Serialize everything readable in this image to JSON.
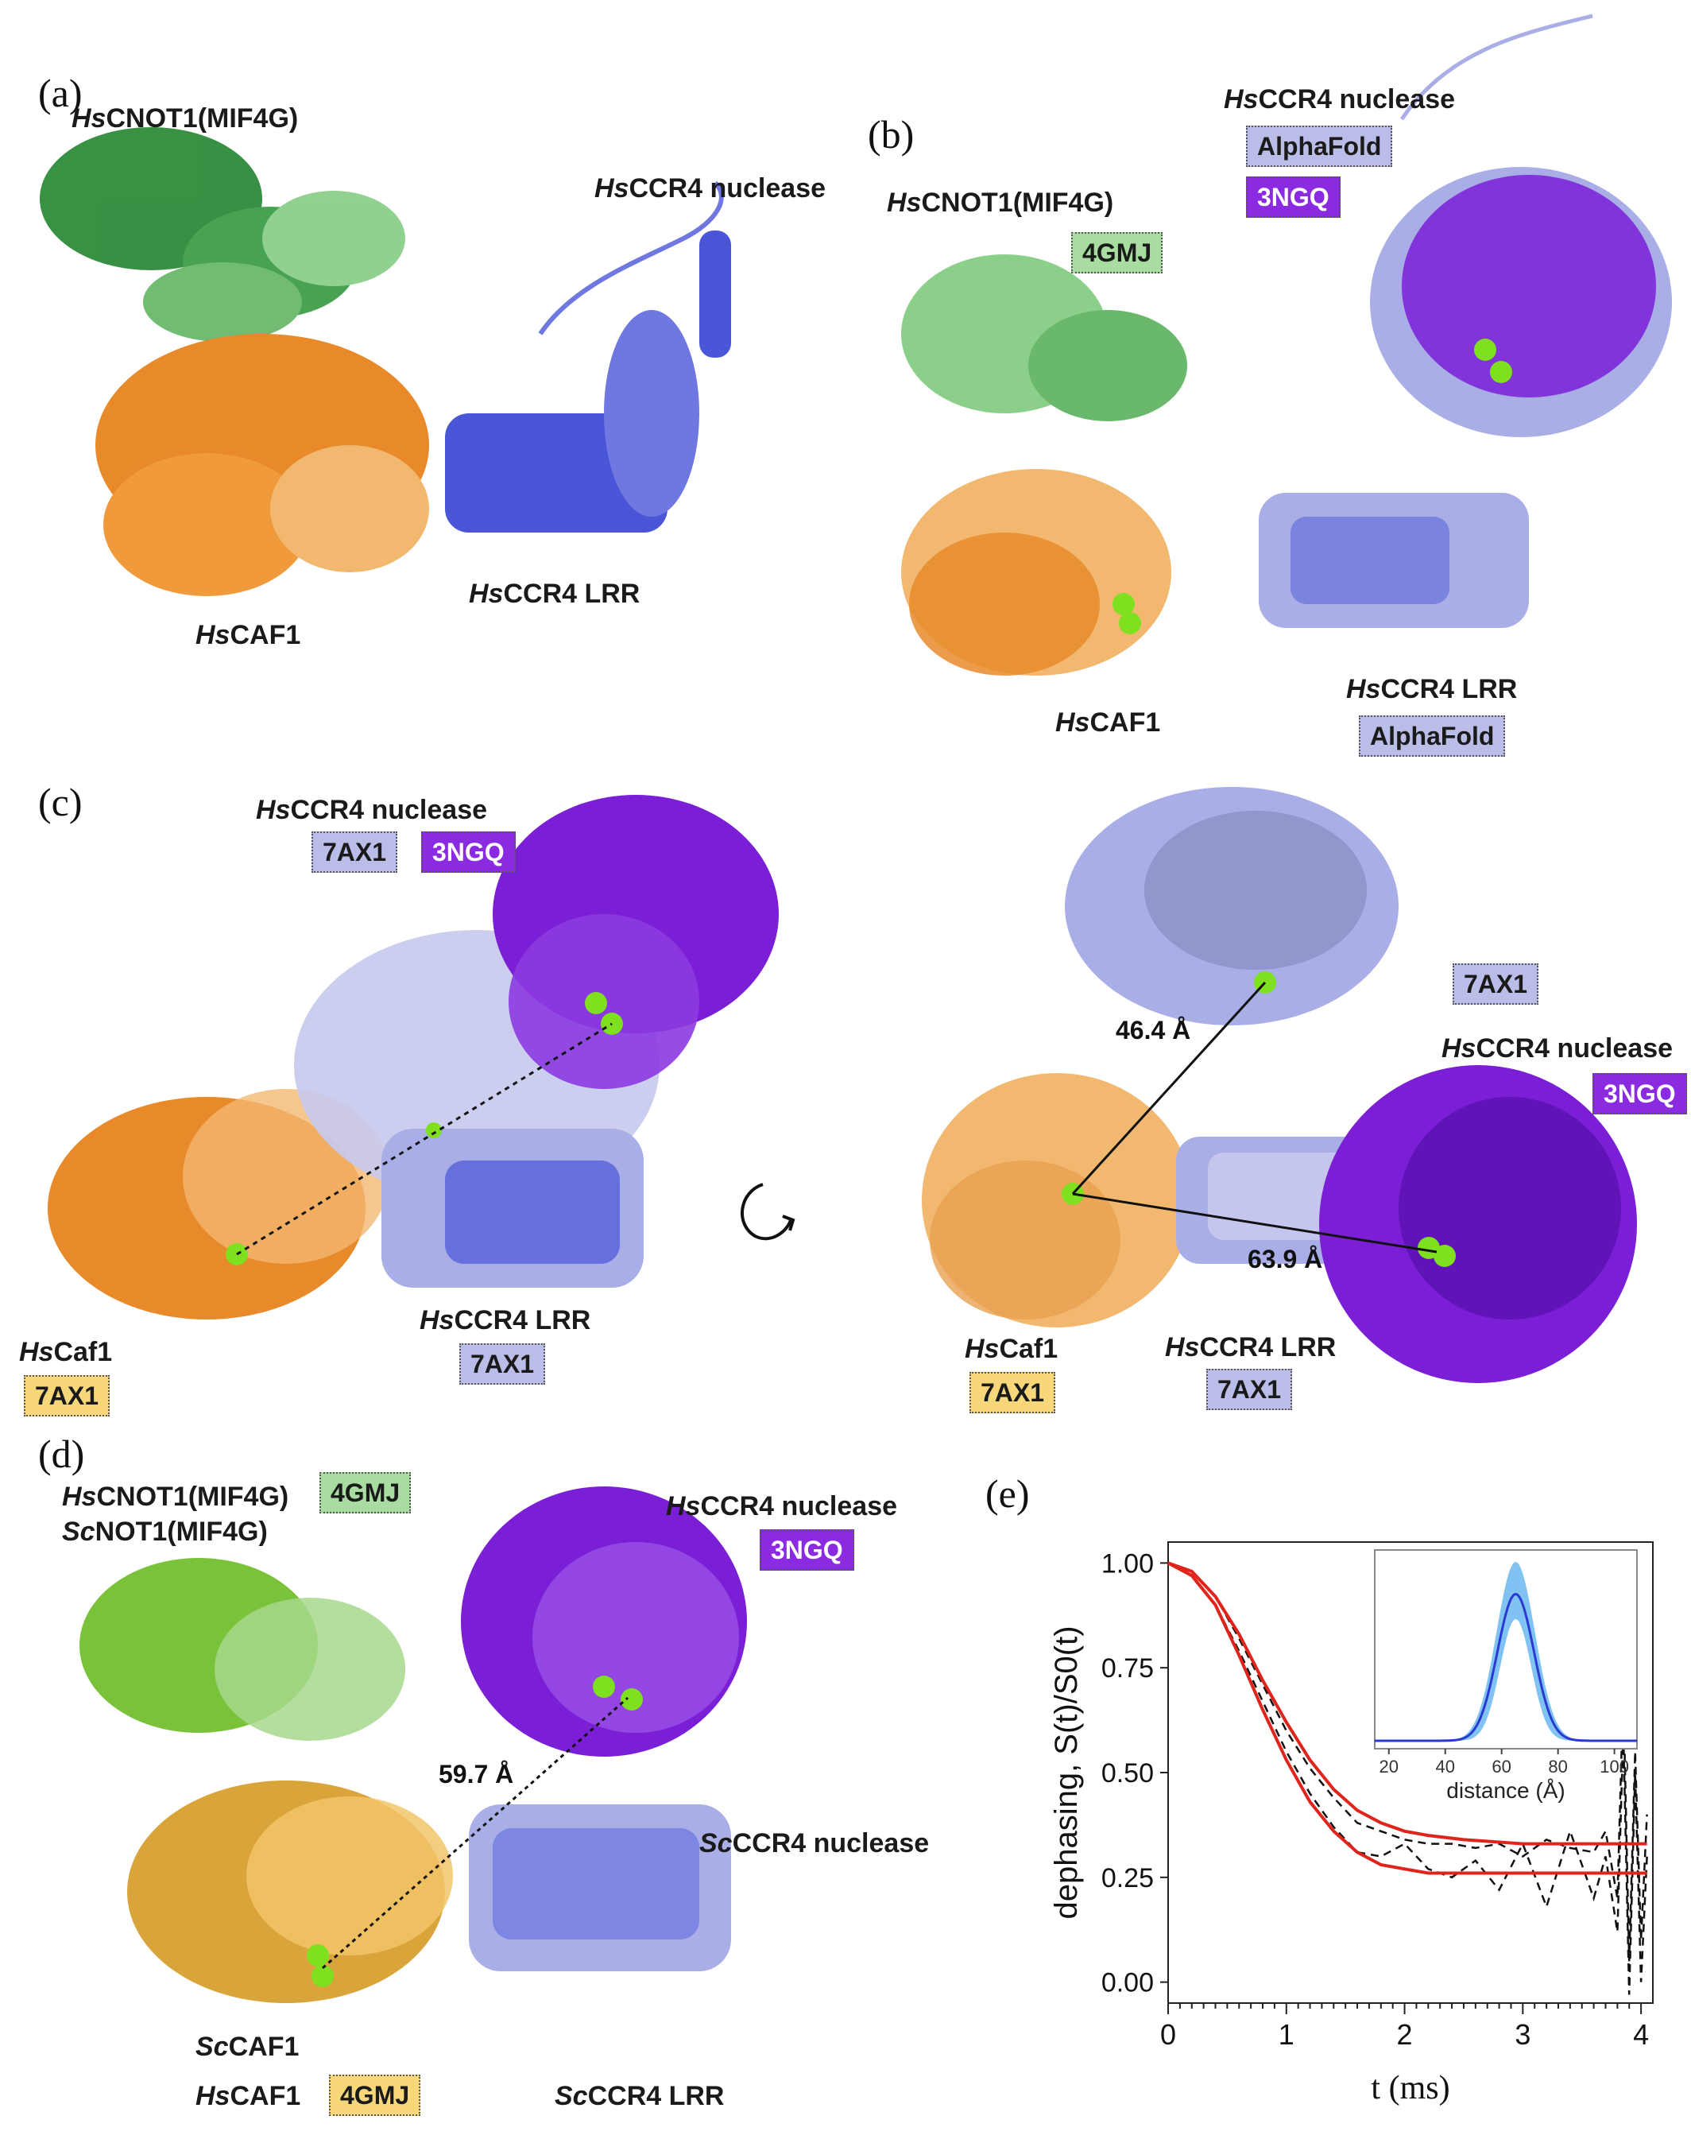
{
  "panels": {
    "a": {
      "letter": "(a)",
      "cnot1": {
        "prefix": "Hs",
        "name": "CNOT1(MIF4G)"
      },
      "nuclease": {
        "prefix": "Hs",
        "name": "CCR4 nuclease"
      },
      "caf1": {
        "prefix": "Hs",
        "name": "CAF1"
      },
      "lrr": {
        "prefix": "Hs",
        "name": "CCR4 LRR"
      }
    },
    "b": {
      "letter": "(b)",
      "nuclease": {
        "prefix": "Hs",
        "name": "CCR4 nuclease"
      },
      "tag_alphafold": "AlphaFold",
      "tag_3ngq": "3NGQ",
      "cnot1": {
        "prefix": "Hs",
        "name": "CNOT1(MIF4G)"
      },
      "tag_4gmj": "4GMJ",
      "caf1": {
        "prefix": "Hs",
        "name": "CAF1"
      },
      "lrr": {
        "prefix": "Hs",
        "name": "CCR4 LRR"
      },
      "tag_lrr_alphafold": "AlphaFold"
    },
    "c": {
      "letter": "(c)",
      "left": {
        "nuclease": {
          "prefix": "Hs",
          "name": "CCR4 nuclease"
        },
        "tag_7ax1": "7AX1",
        "tag_3ngq": "3NGQ",
        "caf1": {
          "prefix": "Hs",
          "name": "Caf1"
        },
        "tag_caf1": "7AX1",
        "lrr": {
          "prefix": "Hs",
          "name": "CCR4 LRR"
        },
        "tag_lrr": "7AX1"
      },
      "right": {
        "tag_top_7ax1": "7AX1",
        "dist1": "46.4 Å",
        "nuclease": {
          "prefix": "Hs",
          "name": "CCR4 nuclease"
        },
        "tag_3ngq": "3NGQ",
        "dist2": "63.9 Å",
        "caf1": {
          "prefix": "Hs",
          "name": "Caf1"
        },
        "tag_caf1": "7AX1",
        "lrr": {
          "prefix": "Hs",
          "name": "CCR4 LRR"
        },
        "tag_lrr": "7AX1"
      }
    },
    "d": {
      "letter": "(d)",
      "cnot1_hs": {
        "prefix": "Hs",
        "name": "CNOT1(MIF4G)"
      },
      "cnot1_sc": {
        "prefix": "Sc",
        "name": "NOT1(MIF4G)"
      },
      "tag_4gmj": "4GMJ",
      "nuclease_hs": {
        "prefix": "Hs",
        "name": "CCR4 nuclease"
      },
      "tag_3ngq": "3NGQ",
      "dist": "59.7 Å",
      "nuclease_sc": {
        "prefix": "Sc",
        "name": "CCR4 nuclease"
      },
      "caf1_sc": {
        "prefix": "Sc",
        "name": "CAF1"
      },
      "caf1_hs": {
        "prefix": "Hs",
        "name": "CAF1"
      },
      "tag_caf1": "4GMJ",
      "lrr_sc": {
        "prefix": "Sc",
        "name": "CCR4 LRR"
      }
    },
    "e": {
      "letter": "(e)"
    }
  },
  "colors": {
    "green_dark": "#2e8b3a",
    "green_light": "#8ccf8a",
    "orange": "#e8892a",
    "orange_light": "#f2b870",
    "blue": "#4a55d8",
    "lavender": "#a9aee6",
    "purple": "#7a1fd6",
    "lime": "#7ac23a",
    "gold": "#d9a43a",
    "ion": "#7fe020"
  },
  "chart_data": {
    "type": "line",
    "xlabel": "t (ms)",
    "ylabel": "dephasing, S(t)/S0(t)",
    "xlim": [
      0,
      4.1
    ],
    "ylim": [
      -0.05,
      1.05
    ],
    "xticks": [
      "0",
      "1",
      "2",
      "3",
      "4"
    ],
    "yticks": [
      "0.00",
      "0.25",
      "0.50",
      "0.75",
      "1.00"
    ],
    "series": [
      {
        "style": "data-dashed",
        "x": [
          0,
          0.2,
          0.4,
          0.6,
          0.8,
          1.0,
          1.2,
          1.4,
          1.6,
          1.8,
          2.0,
          2.2,
          2.4,
          2.6,
          2.8,
          3.0,
          3.2,
          3.4,
          3.6,
          3.7,
          3.8,
          3.85,
          3.9,
          3.95,
          4.0,
          4.05
        ],
        "y": [
          1.0,
          0.98,
          0.92,
          0.82,
          0.71,
          0.6,
          0.51,
          0.44,
          0.38,
          0.36,
          0.34,
          0.33,
          0.33,
          0.32,
          0.33,
          0.3,
          0.34,
          0.32,
          0.31,
          0.36,
          0.2,
          0.7,
          0.05,
          0.55,
          0.1,
          0.4
        ]
      },
      {
        "style": "data-dashed",
        "x": [
          0,
          0.2,
          0.4,
          0.6,
          0.8,
          1.0,
          1.2,
          1.4,
          1.6,
          1.8,
          2.0,
          2.2,
          2.4,
          2.6,
          2.8,
          3.0,
          3.2,
          3.4,
          3.6,
          3.7,
          3.8,
          3.85,
          3.9,
          3.95,
          4.0,
          4.05
        ],
        "y": [
          1.0,
          0.97,
          0.9,
          0.79,
          0.67,
          0.55,
          0.45,
          0.37,
          0.31,
          0.3,
          0.33,
          0.27,
          0.25,
          0.29,
          0.22,
          0.33,
          0.18,
          0.36,
          0.2,
          0.3,
          0.12,
          0.6,
          -0.03,
          0.5,
          0.0,
          0.3
        ]
      },
      {
        "style": "fit-red",
        "x": [
          0,
          0.2,
          0.4,
          0.6,
          0.8,
          1.0,
          1.2,
          1.4,
          1.6,
          1.8,
          2.0,
          2.2,
          2.5,
          3.0,
          3.5,
          4.05
        ],
        "y": [
          1.0,
          0.98,
          0.92,
          0.83,
          0.72,
          0.62,
          0.53,
          0.46,
          0.41,
          0.38,
          0.36,
          0.35,
          0.34,
          0.33,
          0.33,
          0.33
        ]
      },
      {
        "style": "fit-red",
        "x": [
          0,
          0.2,
          0.4,
          0.6,
          0.8,
          1.0,
          1.2,
          1.4,
          1.6,
          1.8,
          2.0,
          2.2,
          2.5,
          3.0,
          3.5,
          4.05
        ],
        "y": [
          1.0,
          0.97,
          0.9,
          0.78,
          0.65,
          0.53,
          0.43,
          0.36,
          0.31,
          0.28,
          0.27,
          0.26,
          0.26,
          0.26,
          0.26,
          0.26
        ]
      }
    ],
    "inset": {
      "xlabel": "distance (Å)",
      "xticks": [
        "20",
        "40",
        "60",
        "80",
        "100"
      ],
      "xlim": [
        15,
        108
      ],
      "peak": 65,
      "width": 6.5
    }
  }
}
